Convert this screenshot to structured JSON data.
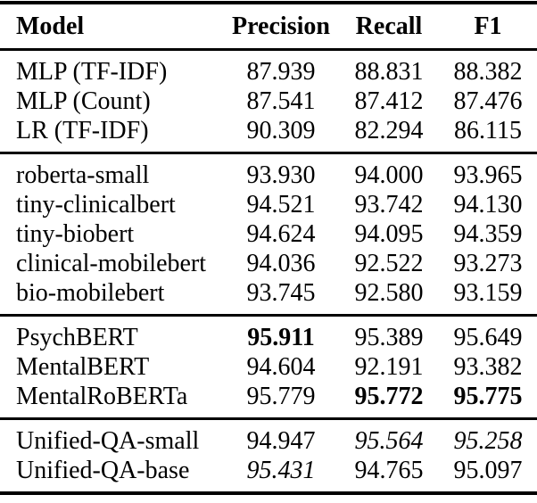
{
  "colors": {
    "background": "#ffffff",
    "text": "#000000",
    "rule": "#000000"
  },
  "table": {
    "header": {
      "columns": [
        "Model",
        "Precision",
        "Recall",
        "F1"
      ]
    },
    "sections": [
      {
        "rows": [
          {
            "cells": [
              "MLP (TF-IDF)",
              "87.939",
              "88.831",
              "88.382"
            ]
          },
          {
            "cells": [
              "MLP (Count)",
              "87.541",
              "87.412",
              "87.476"
            ]
          },
          {
            "cells": [
              "LR (TF-IDF)",
              "90.309",
              "82.294",
              "86.115"
            ]
          }
        ]
      },
      {
        "rows": [
          {
            "cells": [
              "roberta-small",
              "93.930",
              "94.000",
              "93.965"
            ]
          },
          {
            "cells": [
              "tiny-clinicalbert",
              "94.521",
              "93.742",
              "94.130"
            ]
          },
          {
            "cells": [
              "tiny-biobert",
              "94.624",
              "94.095",
              "94.359"
            ]
          },
          {
            "cells": [
              "clinical-mobilebert",
              "94.036",
              "92.522",
              "93.273"
            ]
          },
          {
            "cells": [
              "bio-mobilebert",
              "93.745",
              "92.580",
              "93.159"
            ]
          }
        ]
      },
      {
        "rows": [
          {
            "cells": [
              "PsychBERT",
              "95.911",
              "95.389",
              "95.649"
            ],
            "emphasis": {
              "1": "bold"
            }
          },
          {
            "cells": [
              "MentalBERT",
              "94.604",
              "92.191",
              "93.382"
            ]
          },
          {
            "cells": [
              "MentalRoBERTa",
              "95.779",
              "95.772",
              "95.775"
            ],
            "emphasis": {
              "2": "bold",
              "3": "bold"
            }
          }
        ]
      },
      {
        "rows": [
          {
            "cells": [
              "Unified-QA-small",
              "94.947",
              "95.564",
              "95.258"
            ],
            "emphasis": {
              "2": "italic",
              "3": "italic"
            }
          },
          {
            "cells": [
              "Unified-QA-base",
              "95.431",
              "94.765",
              "95.097"
            ],
            "emphasis": {
              "1": "italic"
            }
          }
        ]
      }
    ]
  }
}
